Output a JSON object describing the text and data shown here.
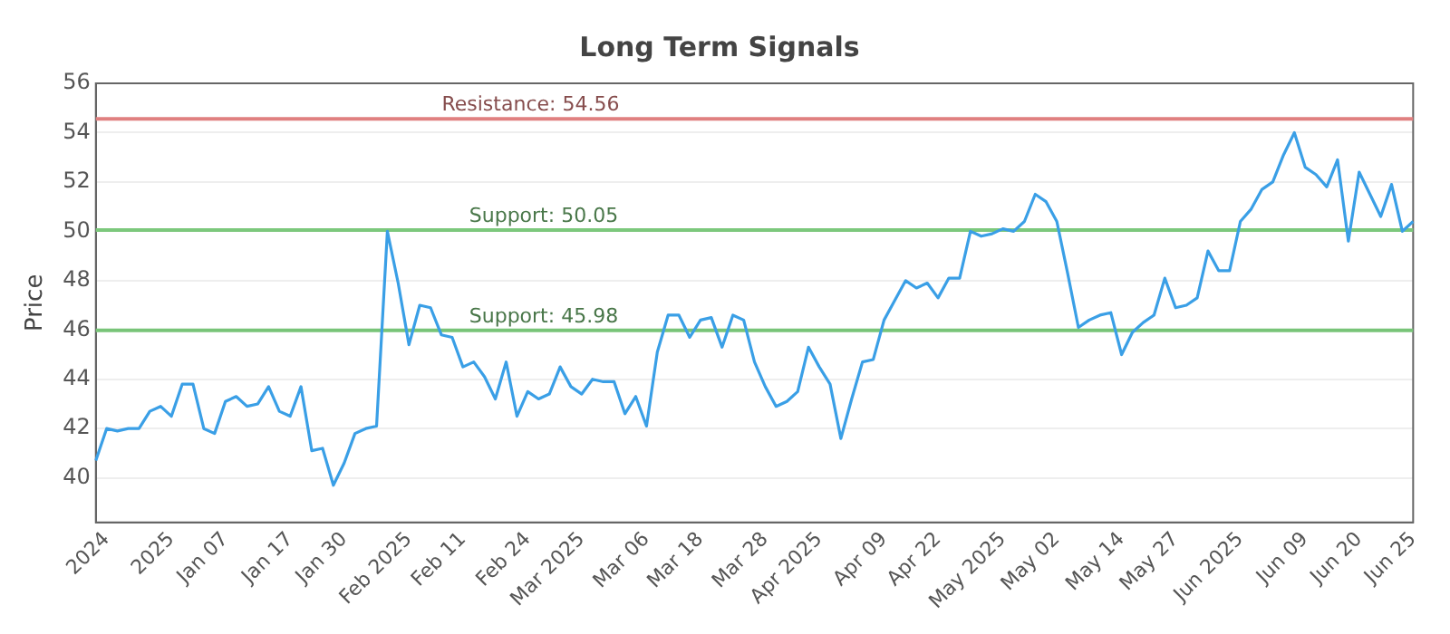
{
  "chart_data": {
    "type": "line",
    "title": "Long Term Signals",
    "ylabel": "Price",
    "categories": [
      null,
      "2024",
      null,
      null,
      null,
      null,
      null,
      "2025",
      null,
      null,
      null,
      null,
      "Jan 07",
      null,
      null,
      null,
      null,
      null,
      "Jan 17",
      null,
      null,
      null,
      null,
      "Jan 30",
      null,
      null,
      null,
      null,
      null,
      "Feb 2025",
      null,
      null,
      null,
      null,
      "Feb 11",
      null,
      null,
      null,
      null,
      null,
      "Feb 24",
      null,
      null,
      null,
      null,
      "Mar 2025",
      null,
      null,
      null,
      null,
      null,
      "Mar 06",
      null,
      null,
      null,
      null,
      "Mar 18",
      null,
      null,
      null,
      null,
      null,
      "Mar 28",
      null,
      null,
      null,
      null,
      "Apr 2025",
      null,
      null,
      null,
      null,
      null,
      "Apr 09",
      null,
      null,
      null,
      null,
      "Apr 22",
      null,
      null,
      null,
      null,
      null,
      "May 2025",
      null,
      null,
      null,
      null,
      "May 02",
      null,
      null,
      null,
      null,
      null,
      "May 14",
      null,
      null,
      null,
      null,
      "May 27",
      null,
      null,
      null,
      null,
      null,
      "Jun 2025",
      null,
      null,
      null,
      null,
      null,
      "Jun 09",
      null,
      null,
      null,
      null,
      "Jun 20",
      null,
      null,
      null,
      null,
      "Jun 25"
    ],
    "series": [
      {
        "color": "#3a9fe6",
        "values": [
          40.7,
          42.0,
          41.9,
          42.0,
          42.0,
          42.7,
          42.9,
          42.5,
          43.8,
          43.8,
          42.0,
          41.8,
          43.1,
          43.3,
          42.9,
          43.0,
          43.7,
          42.7,
          42.5,
          43.7,
          41.1,
          41.2,
          39.7,
          40.6,
          41.8,
          42.0,
          42.1,
          50.0,
          47.9,
          45.4,
          47.0,
          46.9,
          45.8,
          45.7,
          44.5,
          44.7,
          44.1,
          43.2,
          44.7,
          42.5,
          43.5,
          43.2,
          43.4,
          44.5,
          43.7,
          43.4,
          44.0,
          43.9,
          43.9,
          42.6,
          43.3,
          42.1,
          45.1,
          46.6,
          46.6,
          45.7,
          46.4,
          46.5,
          45.3,
          46.6,
          46.4,
          44.7,
          43.7,
          42.9,
          43.1,
          43.5,
          45.3,
          44.5,
          43.8,
          41.6,
          43.2,
          44.7,
          44.8,
          46.4,
          47.2,
          48.0,
          47.7,
          47.9,
          47.3,
          48.1,
          48.1,
          50.0,
          49.8,
          49.9,
          50.1,
          50.0,
          50.4,
          51.5,
          51.2,
          50.4,
          48.3,
          46.1,
          46.4,
          46.6,
          46.7,
          45.0,
          45.9,
          46.3,
          46.6,
          48.1,
          46.9,
          47.0,
          47.3,
          49.2,
          48.4,
          48.4,
          50.4,
          50.9,
          51.7,
          52.0,
          53.1,
          54.0,
          52.6,
          52.3,
          51.8,
          52.9,
          49.6,
          52.4,
          51.5,
          50.6,
          51.9,
          50.0,
          50.4
        ]
      }
    ],
    "ylim": [
      38.2,
      56
    ],
    "yticks": [
      40,
      42,
      44,
      46,
      48,
      50,
      52,
      54,
      56
    ],
    "grid": "y",
    "legend": false,
    "marker": "none",
    "line_style": "solid",
    "ref_lines": [
      {
        "axis": "y",
        "value": 54.56,
        "label": "Resistance: 54.56",
        "color": "#e08080"
      },
      {
        "axis": "y",
        "value": 50.05,
        "label": "Support: 50.05",
        "color": "#7cc87c"
      },
      {
        "axis": "y",
        "value": 45.98,
        "label": "Support: 45.98",
        "color": "#78c478"
      }
    ]
  }
}
